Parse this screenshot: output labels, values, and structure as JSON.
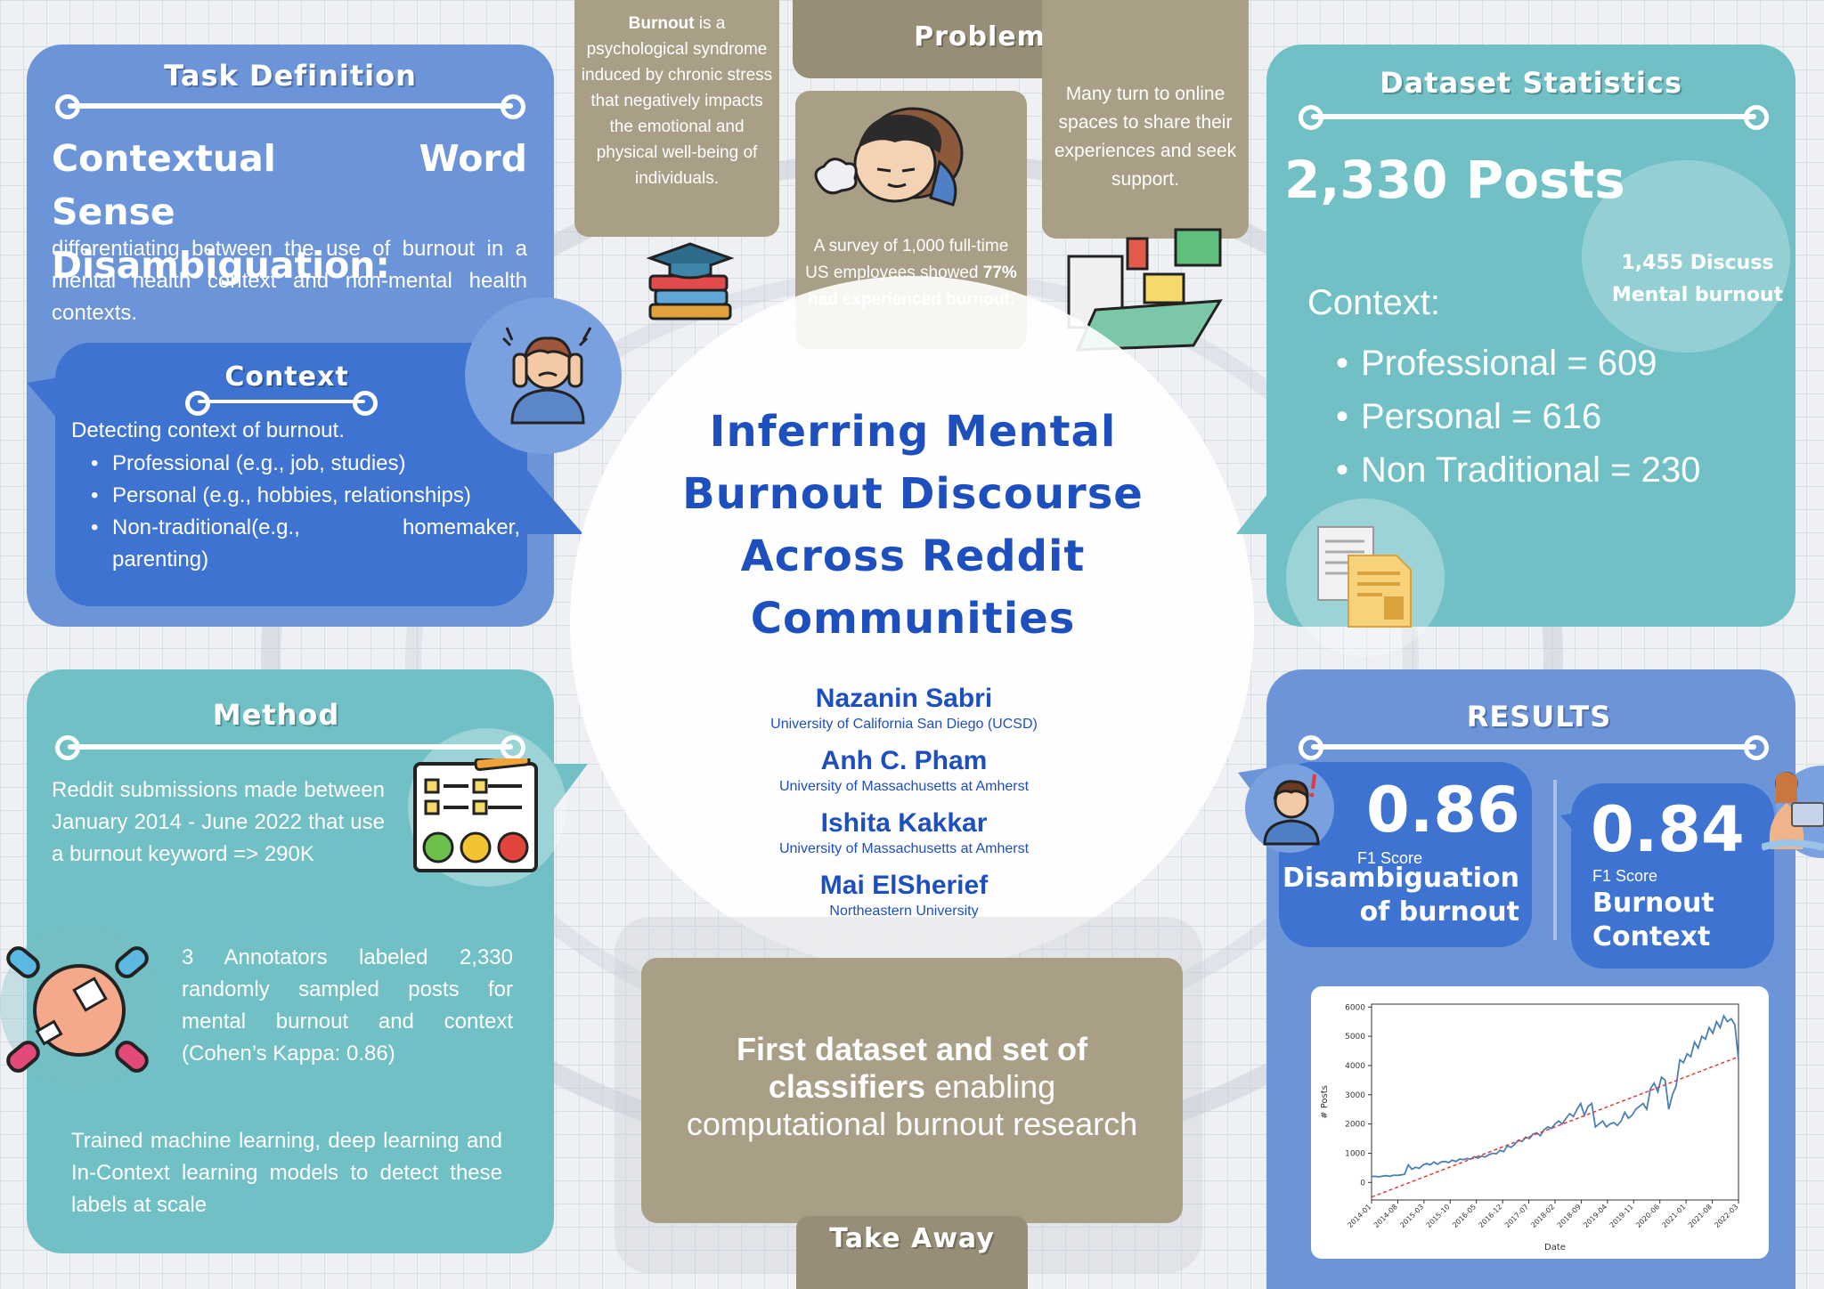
{
  "title": {
    "lines": [
      "Inferring Mental",
      "Burnout Discourse",
      "Across Reddit",
      "Communities"
    ]
  },
  "authors": [
    {
      "name": "Nazanin Sabri",
      "affiliation": "University of California San Diego (UCSD)"
    },
    {
      "name": "Anh C. Pham",
      "affiliation": "University of Massachusetts at Amherst"
    },
    {
      "name": "Ishita Kakkar",
      "affiliation": "University of Massachusetts at Amherst"
    },
    {
      "name": "Mai ElSherief",
      "affiliation": "Northeastern University"
    }
  ],
  "task": {
    "title": "Task Definition",
    "heading_1": "Contextual Word Sense",
    "heading_2": "Disambiguation:",
    "body": "differentiating between the use of burnout in a mental health context and non-mental health contexts."
  },
  "context": {
    "title": "Context",
    "intro": "Detecting context of burnout.",
    "items": [
      "Professional (e.g., job, studies)",
      "Personal (e.g., hobbies, relationships)",
      "Non-traditional(e.g., homemaker, parenting)"
    ]
  },
  "problem": {
    "title": "Problem",
    "definition_bold": "Burnout",
    "definition_rest": " is a psychological syndrome induced by chronic stress that negatively impacts the emotional and physical well-being of individuals.",
    "survey_pre": "A survey of 1,000 full-time US employees showed ",
    "survey_bold": "77% had experienced burnout.",
    "online": "Many turn to online spaces to share their experiences and seek support."
  },
  "dataset": {
    "title": "Dataset Statistics",
    "total": "2,330 Posts",
    "mental": "1,455 Discuss Mental burnout",
    "context_label": "Context:",
    "items": [
      "Professional = 609",
      "Personal = 616",
      "Non Traditional = 230"
    ]
  },
  "method": {
    "title": "Method",
    "p1": "Reddit submissions made between January 2014 - June 2022 that use a burnout keyword => 290K",
    "p2": "3 Annotators labeled 2,330 randomly sampled posts for mental burnout and context (Cohen’s Kappa: 0.86)",
    "p3": "Trained machine learning, deep learning and In-Context learning models to detect these labels at scale"
  },
  "takeaway": {
    "title": "Take Away",
    "bold": "First dataset and set of classifiers",
    "rest": " enabling computational burnout research"
  },
  "results": {
    "title": "RESULTS",
    "score1": "0.86",
    "score1_label": "F1 Score",
    "score1_desc_1": "Disambiguation",
    "score1_desc_2": "of burnout",
    "score2": "0.84",
    "score2_label": "F1 Score",
    "score2_desc_1": "Burnout",
    "score2_desc_2": "Context"
  },
  "chart_data": {
    "type": "line",
    "title": "",
    "xlabel": "Date",
    "ylabel": "# Posts",
    "ylim": [
      -600,
      6100
    ],
    "yticks": [
      0,
      1000,
      2000,
      3000,
      4000,
      5000,
      6000
    ],
    "xticks": [
      "2014-01",
      "2014-08",
      "2015-03",
      "2015-10",
      "2016-05",
      "2016-12",
      "2017-07",
      "2018-02",
      "2018-09",
      "2019-04",
      "2019-11",
      "2020-06",
      "2021-01",
      "2021-08",
      "2022-03"
    ],
    "grid": false,
    "series": [
      {
        "style": "solid",
        "color": "#4a7fb5",
        "x": [
          0,
          1,
          2,
          3,
          4,
          5,
          6,
          7,
          8,
          9,
          10,
          11,
          12,
          13,
          14,
          15,
          16,
          17,
          18,
          19,
          20,
          21,
          22,
          23,
          24,
          25,
          26,
          27,
          28,
          29,
          30,
          31,
          32,
          33,
          34,
          35,
          36,
          37,
          38,
          39,
          40,
          41,
          42,
          43,
          44,
          45,
          46,
          47,
          48,
          49,
          50,
          51,
          52,
          53,
          54,
          55,
          56,
          57,
          58,
          59,
          60,
          61,
          62,
          63,
          64,
          65,
          66,
          67,
          68,
          69,
          70,
          71,
          72,
          73,
          74,
          75,
          76,
          77,
          78,
          79,
          80,
          81,
          82,
          83,
          84,
          85,
          86,
          87,
          88,
          89,
          90,
          91,
          92,
          93,
          94,
          95,
          96,
          97,
          98,
          99,
          100
        ],
        "values": [
          200,
          210,
          190,
          220,
          230,
          210,
          250,
          240,
          260,
          280,
          600,
          450,
          520,
          480,
          600,
          650,
          600,
          700,
          620,
          700,
          720,
          680,
          760,
          720,
          800,
          780,
          820,
          800,
          880,
          830,
          900,
          870,
          950,
          1000,
          980,
          1100,
          1050,
          1250,
          1200,
          1300,
          1450,
          1400,
          1550,
          1500,
          1650,
          1700,
          1600,
          1800,
          1900,
          1850,
          2000,
          2100,
          2000,
          2200,
          2350,
          2250,
          2500,
          2700,
          2300,
          2600,
          2700,
          1900,
          2000,
          2100,
          1900,
          2000,
          2050,
          1950,
          2100,
          2400,
          2200,
          2300,
          2500,
          2600,
          2700,
          2500,
          3200,
          3400,
          3100,
          3600,
          3500,
          2500,
          3000,
          3300,
          4200,
          4100,
          4400,
          4300,
          4800,
          4600,
          5000,
          4900,
          5300,
          5100,
          5500,
          5300,
          5700,
          5500,
          5600,
          5400,
          4200
        ]
      },
      {
        "style": "dashed",
        "color": "#e03b3b",
        "x": [
          0,
          100
        ],
        "values": [
          -500,
          4300
        ]
      }
    ]
  }
}
